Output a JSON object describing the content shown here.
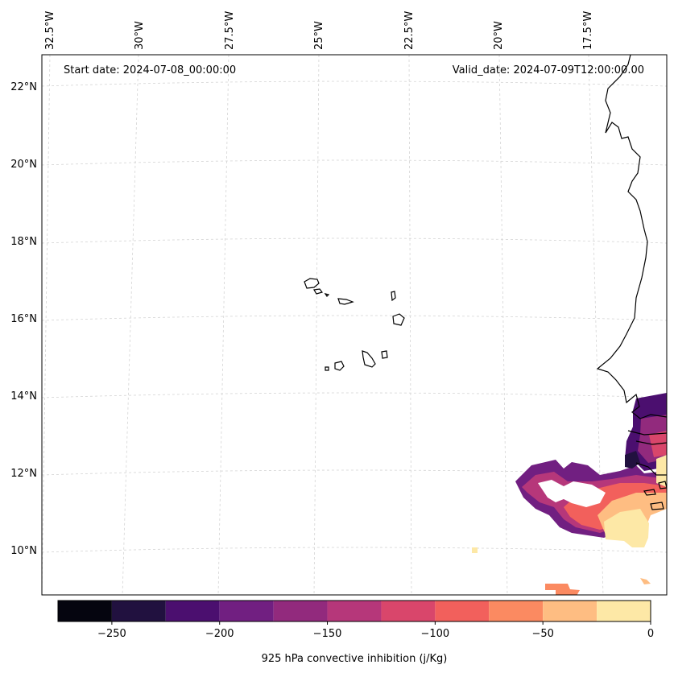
{
  "map": {
    "start_date": "Start date: 2024-07-08_00:00:00",
    "valid_date": "Valid_date: 2024-07-09T12:00:00.00",
    "lon_labels": [
      "32.5°W",
      "30°W",
      "27.5°W",
      "25°W",
      "22.5°W",
      "20°W",
      "17.5°W"
    ],
    "lat_labels": [
      "22°N",
      "20°N",
      "18°N",
      "16°N",
      "14°N",
      "12°N",
      "10°N"
    ],
    "gridlines": true,
    "gridline_style": "dashed",
    "coastline_color": "#000000"
  },
  "colorbar": {
    "label": "925 hPa convective inhibition (j/Kg)",
    "tick_labels": [
      "−250",
      "−200",
      "−150",
      "−100",
      "−50",
      "0"
    ],
    "levels": [
      -275,
      -250,
      -225,
      -200,
      -175,
      -150,
      -125,
      -100,
      -75,
      -50,
      -25,
      0
    ],
    "colors": [
      "#05050f",
      "#21113f",
      "#4b0f6f",
      "#711f81",
      "#922a7d",
      "#b6377a",
      "#d9466b",
      "#f2605c",
      "#fb8a61",
      "#febd82",
      "#fde8a6"
    ],
    "orientation": "horizontal",
    "placement": "bottom"
  }
}
